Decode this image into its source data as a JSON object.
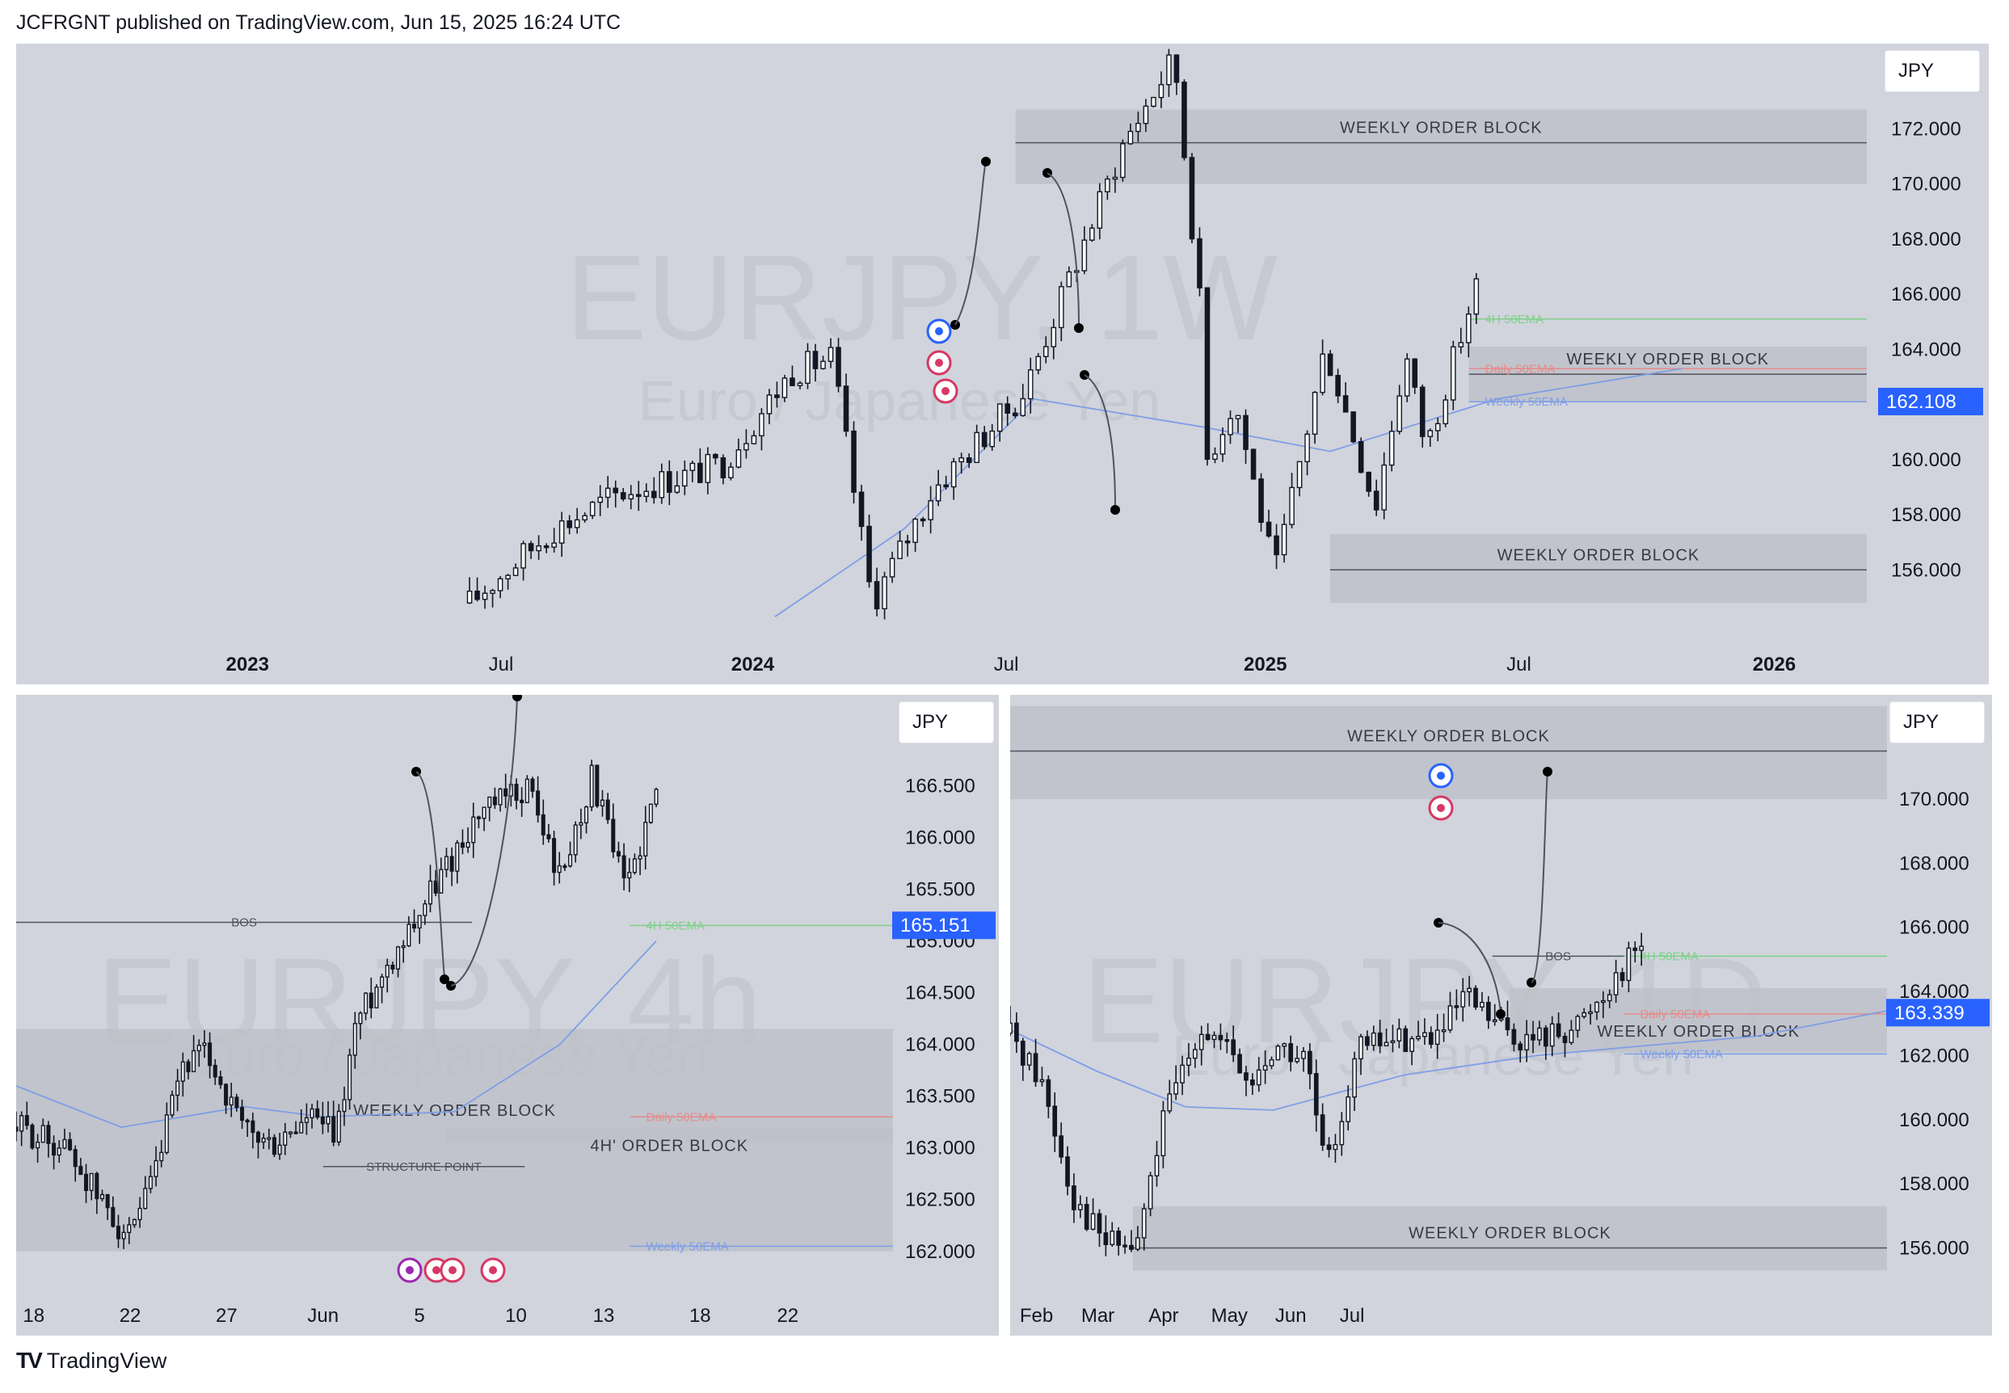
{
  "header": {
    "publisher": "JCFRGNT published on TradingView.com, Jun 15, 2025 16:24 UTC"
  },
  "footer": {
    "brand": "TradingView",
    "logo": "TV"
  },
  "colors": {
    "panel_bg": "#d1d4dc",
    "zone": "#bfc2ca",
    "candle": "#131722",
    "ema_blue": "#7f9ee6",
    "ema_green": "#7fd08a",
    "ema_red": "#e58b8b",
    "price_tag": "#2962ff"
  },
  "chart_data": [
    {
      "id": "weekly",
      "type": "candlestick",
      "watermark": "EURJPY, 1W",
      "watermark_sub": "Euro / Japanese Yen",
      "currency": "JPY",
      "ylim": [
        153.4,
        174.8
      ],
      "yticks": [
        "172.000",
        "170.000",
        "168.000",
        "166.000",
        "164.000",
        "162.000",
        "160.000",
        "158.000",
        "156.000"
      ],
      "ytick_values": [
        172,
        170,
        168,
        166,
        164,
        162,
        160,
        158,
        156
      ],
      "xticks": [
        {
          "label": "2023",
          "t": 0.125,
          "bold": true
        },
        {
          "label": "Jul",
          "t": 0.262,
          "bold": false
        },
        {
          "label": "2024",
          "t": 0.398,
          "bold": true
        },
        {
          "label": "Jul",
          "t": 0.535,
          "bold": false
        },
        {
          "label": "2025",
          "t": 0.675,
          "bold": true
        },
        {
          "label": "Jul",
          "t": 0.812,
          "bold": false
        },
        {
          "label": "2026",
          "t": 0.95,
          "bold": true
        }
      ],
      "current_price": "162.108",
      "current_value": 162.108,
      "zones": [
        {
          "label": "WEEKLY ORDER BLOCK",
          "top": 172.7,
          "bottom": 170.0,
          "mid": 171.5,
          "t0": 0.54,
          "t1": 1.0
        },
        {
          "label": "WEEKLY ORDER BLOCK",
          "top": 164.1,
          "bottom": 162.1,
          "mid": 163.1,
          "t0": 0.785,
          "t1": 1.0
        },
        {
          "label": "WEEKLY ORDER BLOCK",
          "top": 157.3,
          "bottom": 154.8,
          "mid": 156.0,
          "t0": 0.71,
          "t1": 1.0
        }
      ],
      "emas": [
        {
          "label": "4H 50EMA",
          "value": 165.1,
          "color": "#7fd08a"
        },
        {
          "label": "Daily 50EMA",
          "value": 163.3,
          "color": "#e58b8b"
        },
        {
          "label": "Weekly 50EMA",
          "value": 162.1,
          "color": "#7f9ee6"
        }
      ],
      "candles": {
        "t_start": 0.245,
        "t_end": 0.789,
        "count": 132,
        "path": [
          [
            0,
            154.8
          ],
          [
            0.08,
            157.4
          ],
          [
            0.15,
            158.8
          ],
          [
            0.25,
            159.8
          ],
          [
            0.32,
            163.2
          ],
          [
            0.36,
            163.7
          ],
          [
            0.4,
            154.8
          ],
          [
            0.46,
            158.9
          ],
          [
            0.55,
            162.4
          ],
          [
            0.65,
            171.5
          ],
          [
            0.7,
            174.6
          ],
          [
            0.725,
            166.0
          ],
          [
            0.73,
            159.8
          ],
          [
            0.76,
            162.2
          ],
          [
            0.8,
            155.8
          ],
          [
            0.85,
            164.1
          ],
          [
            0.9,
            158.3
          ],
          [
            0.93,
            163.8
          ],
          [
            0.95,
            160.4
          ],
          [
            1.0,
            166.3
          ]
        ]
      },
      "ema_curve": [
        [
          0.41,
          154.3
        ],
        [
          0.48,
          157.5
        ],
        [
          0.55,
          162.2
        ],
        [
          0.64,
          161.2
        ],
        [
          0.71,
          160.3
        ],
        [
          0.8,
          162.2
        ],
        [
          0.9,
          163.3
        ]
      ],
      "annotations": [
        "arrow-up-to-170.4",
        "arrow-down-to-164.2",
        "arrow-down-to-157.2"
      ]
    },
    {
      "id": "h4",
      "type": "candlestick",
      "watermark": "EURJPY, 4h",
      "watermark_sub": "Euro / Japanese Yen",
      "currency": "JPY",
      "ylim": [
        161.6,
        167.3
      ],
      "yticks": [
        "166.500",
        "166.000",
        "165.500",
        "165.000",
        "164.500",
        "164.000",
        "163.500",
        "163.000",
        "162.500",
        "162.000"
      ],
      "ytick_values": [
        166.5,
        166.0,
        165.5,
        165.0,
        164.5,
        164.0,
        163.5,
        163.0,
        162.5,
        162.0
      ],
      "xticks": [
        {
          "label": "18",
          "t": 0.02
        },
        {
          "label": "22",
          "t": 0.13
        },
        {
          "label": "27",
          "t": 0.24
        },
        {
          "label": "Jun",
          "t": 0.35
        },
        {
          "label": "5",
          "t": 0.46
        },
        {
          "label": "10",
          "t": 0.57
        },
        {
          "label": "13",
          "t": 0.67
        },
        {
          "label": "18",
          "t": 0.78
        },
        {
          "label": "22",
          "t": 0.88
        }
      ],
      "current_price": "165.151",
      "current_value": 165.151,
      "zones": [
        {
          "label": "WEEKLY ORDER BLOCK",
          "top": 164.15,
          "bottom": 162.0,
          "t0": 0.0,
          "t1": 1.0
        },
        {
          "label": "4H' ORDER BLOCK",
          "top": 163.2,
          "bottom": 163.05,
          "t0": 0.49,
          "t1": 1.0
        }
      ],
      "levels": [
        {
          "label": "BOS",
          "value": 165.18
        },
        {
          "label": "STRUCTURE POINT",
          "value": 162.82
        }
      ],
      "emas": [
        {
          "label": "4H 50EMA",
          "value": 165.15,
          "color": "#7fd08a"
        },
        {
          "label": "Daily 50EMA",
          "value": 163.3,
          "color": "#e58b8b"
        },
        {
          "label": "Weekly 50EMA",
          "value": 162.05,
          "color": "#7f9ee6"
        }
      ],
      "candles": {
        "t_start": 0.0,
        "t_end": 0.73,
        "count": 120,
        "path": [
          [
            0,
            163.2
          ],
          [
            0.08,
            163.0
          ],
          [
            0.13,
            162.5
          ],
          [
            0.18,
            162.1
          ],
          [
            0.22,
            162.8
          ],
          [
            0.26,
            163.8
          ],
          [
            0.3,
            163.9
          ],
          [
            0.35,
            163.2
          ],
          [
            0.4,
            163.0
          ],
          [
            0.46,
            163.3
          ],
          [
            0.5,
            163.1
          ],
          [
            0.53,
            164.2
          ],
          [
            0.6,
            165.0
          ],
          [
            0.66,
            165.6
          ],
          [
            0.72,
            166.2
          ],
          [
            0.8,
            166.5
          ],
          [
            0.85,
            165.6
          ],
          [
            0.9,
            166.6
          ],
          [
            0.95,
            165.5
          ],
          [
            1.0,
            166.4
          ]
        ]
      },
      "ema_curve": [
        [
          0.0,
          163.6
        ],
        [
          0.12,
          163.2
        ],
        [
          0.26,
          163.4
        ],
        [
          0.35,
          163.3
        ],
        [
          0.5,
          163.35
        ],
        [
          0.62,
          164.0
        ],
        [
          0.73,
          165.0
        ]
      ],
      "annotations": [
        "arrow-down-to-163.3",
        "curve-up-beyond-chart"
      ]
    },
    {
      "id": "daily",
      "type": "candlestick",
      "watermark": "EURJPY, 1D",
      "watermark_sub": "Euro / Japanese Yen",
      "currency": "JPY",
      "ylim": [
        154.6,
        173.0
      ],
      "yticks": [
        "170.000",
        "168.000",
        "166.000",
        "164.000",
        "162.000",
        "160.000",
        "158.000",
        "156.000"
      ],
      "ytick_values": [
        170,
        168,
        166,
        164,
        162,
        160,
        158,
        156
      ],
      "xticks": [
        {
          "label": "Feb",
          "t": 0.03
        },
        {
          "label": "Mar",
          "t": 0.1
        },
        {
          "label": "Apr",
          "t": 0.175
        },
        {
          "label": "May",
          "t": 0.25
        },
        {
          "label": "Jun",
          "t": 0.32
        },
        {
          "label": "Jul",
          "t": 0.39
        }
      ],
      "current_price": "163.339",
      "current_value": 163.339,
      "zones": [
        {
          "label": "WEEKLY ORDER BLOCK",
          "top": 172.9,
          "bottom": 170.0,
          "mid": 171.5,
          "t0": 0.0,
          "t1": 1.0
        },
        {
          "label": "WEEKLY ORDER BLOCK",
          "top": 164.1,
          "bottom": 162.1,
          "t0": 0.57,
          "t1": 1.0
        },
        {
          "label": "WEEKLY ORDER BLOCK",
          "top": 157.3,
          "bottom": 155.3,
          "mid": 156.0,
          "t0": 0.14,
          "t1": 1.0
        }
      ],
      "levels": [
        {
          "label": "BOS",
          "value": 165.1
        }
      ],
      "emas": [
        {
          "label": "4H 50EMA",
          "value": 165.1,
          "color": "#7fd08a"
        },
        {
          "label": "Daily 50EMA",
          "value": 163.3,
          "color": "#e58b8b"
        },
        {
          "label": "Weekly 50EMA",
          "value": 162.05,
          "color": "#7f9ee6"
        }
      ],
      "candles": {
        "t_start": 0.0,
        "t_end": 0.72,
        "count": 100,
        "path": [
          [
            0,
            162.7
          ],
          [
            0.05,
            161.2
          ],
          [
            0.1,
            157.6
          ],
          [
            0.15,
            156.2
          ],
          [
            0.2,
            156.0
          ],
          [
            0.24,
            159.8
          ],
          [
            0.3,
            163.0
          ],
          [
            0.35,
            162.0
          ],
          [
            0.38,
            161.0
          ],
          [
            0.42,
            162.3
          ],
          [
            0.47,
            161.8
          ],
          [
            0.5,
            158.3
          ],
          [
            0.55,
            162.2
          ],
          [
            0.6,
            162.5
          ],
          [
            0.68,
            162.6
          ],
          [
            0.72,
            163.8
          ],
          [
            0.78,
            162.8
          ],
          [
            0.82,
            162.4
          ],
          [
            0.9,
            163.0
          ],
          [
            0.94,
            164.0
          ],
          [
            1.0,
            165.6
          ]
        ]
      },
      "ema_curve": [
        [
          0.0,
          162.8
        ],
        [
          0.1,
          161.5
        ],
        [
          0.2,
          160.4
        ],
        [
          0.3,
          160.3
        ],
        [
          0.45,
          161.4
        ],
        [
          0.6,
          162.0
        ],
        [
          0.72,
          162.3
        ],
        [
          0.85,
          162.6
        ],
        [
          1.0,
          163.4
        ]
      ],
      "annotations": [
        "arrow-down-to-163.3",
        "arrow-up-to-170.2"
      ]
    }
  ]
}
